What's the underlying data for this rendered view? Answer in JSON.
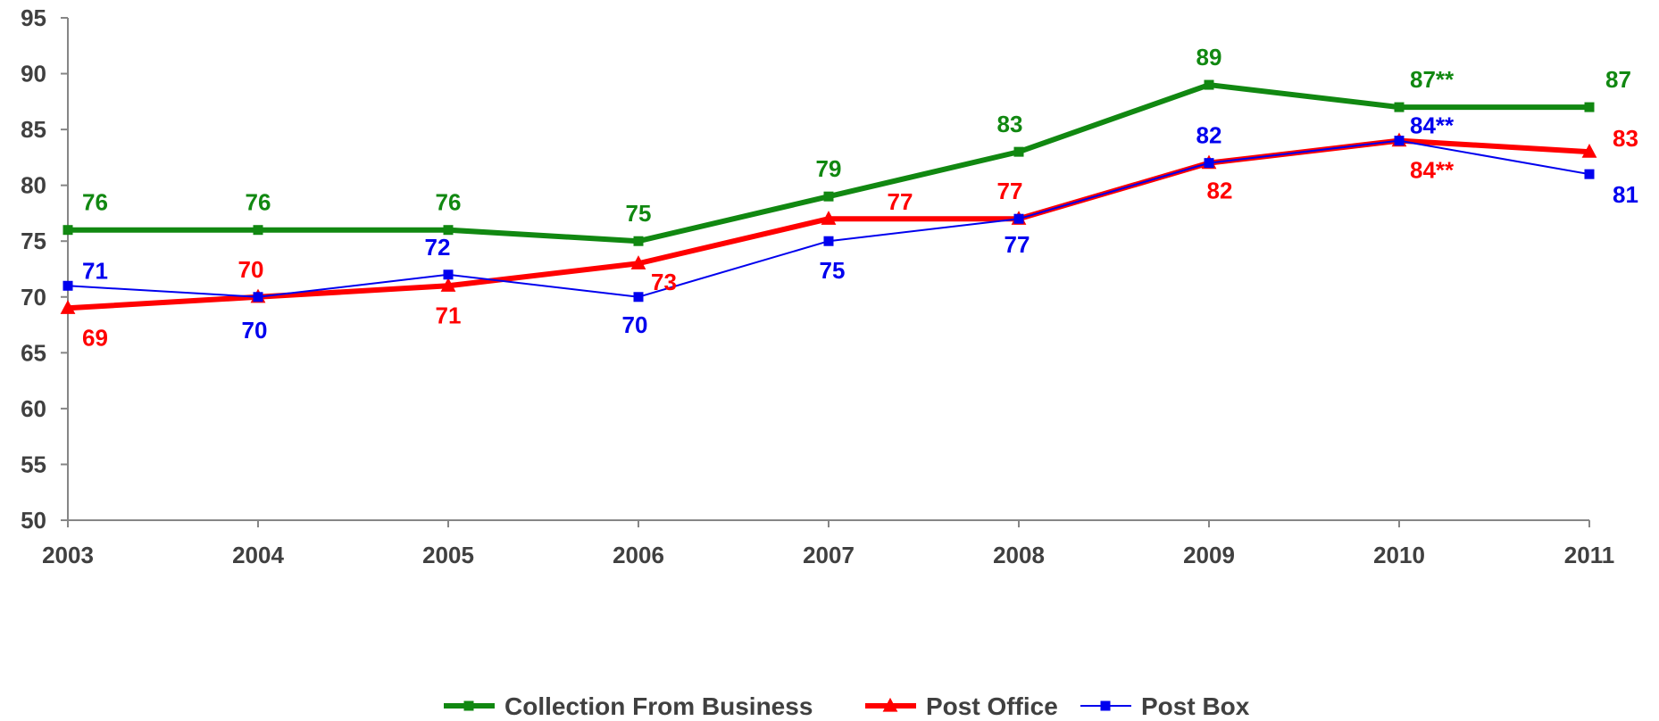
{
  "chart_data": {
    "type": "line",
    "x": [
      "2003",
      "2004",
      "2005",
      "2006",
      "2007",
      "2008",
      "2009",
      "2010",
      "2011"
    ],
    "ylim": [
      50,
      95
    ],
    "yticks": [
      50,
      55,
      60,
      65,
      70,
      75,
      80,
      85,
      90,
      95
    ],
    "ytick_labels": [
      "50",
      "55",
      "60",
      "65",
      "70",
      "75",
      "80",
      "85",
      "90",
      "95"
    ],
    "title": "",
    "xlabel": "",
    "ylabel": "",
    "grid": false,
    "legend_position": "bottom",
    "series": [
      {
        "name": "Collection From Business",
        "color": "#118811",
        "marker": "square",
        "line": "thick",
        "values": [
          76,
          76,
          76,
          75,
          79,
          83,
          89,
          87,
          87
        ],
        "labels": [
          "76",
          "76",
          "76",
          "75",
          "79",
          "83",
          "89",
          "87**",
          "87"
        ]
      },
      {
        "name": "Post Office",
        "color": "#ff0000",
        "marker": "triangle",
        "line": "thick",
        "values": [
          69,
          70,
          71,
          73,
          77,
          77,
          82,
          84,
          83
        ],
        "labels": [
          "69",
          "70",
          "71",
          "73",
          "77",
          "77",
          "82",
          "84**",
          "83"
        ]
      },
      {
        "name": "Post Box",
        "color": "#0000ee",
        "marker": "square",
        "line": "thin",
        "values": [
          71,
          70,
          72,
          70,
          75,
          77,
          82,
          84,
          81
        ],
        "labels": [
          "71",
          "70",
          "72",
          "70",
          "75",
          "77",
          "82",
          "84**",
          "81"
        ]
      }
    ]
  }
}
